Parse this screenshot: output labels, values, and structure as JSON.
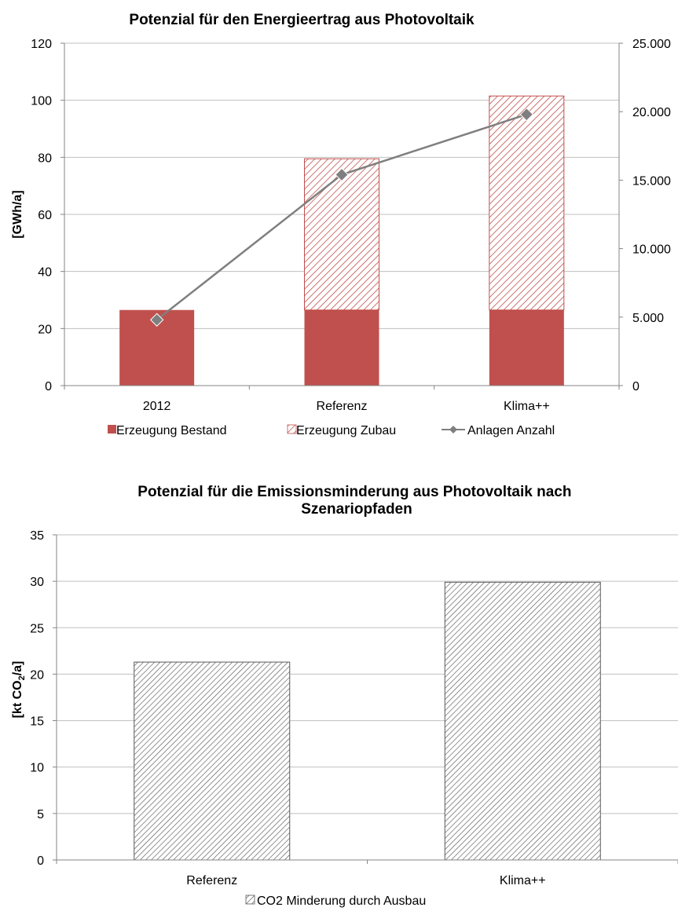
{
  "chart_data": [
    {
      "type": "bar",
      "stacked": true,
      "title": "Potenzial für den Energieertrag aus Photovoltaik",
      "ylabel": "[GWh/a]",
      "categories": [
        "2012",
        "Referenz",
        "Klima++"
      ],
      "ylim": [
        0,
        120
      ],
      "yticks": [
        "0",
        "20",
        "40",
        "60",
        "80",
        "100",
        "120"
      ],
      "y2lim": [
        0,
        25000
      ],
      "y2ticks": [
        "0",
        "5.000",
        "10.000",
        "15.000",
        "20.000",
        "25.000"
      ],
      "grid": true,
      "legend_position": "bottom",
      "series": [
        {
          "name": "Erzeugung Bestand",
          "type": "bar",
          "color": "#c0504d",
          "values": [
            26.5,
            26.5,
            26.5
          ]
        },
        {
          "name": "Erzeugung Zubau",
          "type": "bar",
          "pattern": "diagonal-hatch",
          "color": "#c0504d",
          "values": [
            0,
            53,
            75
          ]
        },
        {
          "name": "Anlagen Anzahl",
          "type": "line",
          "axis": "secondary",
          "color": "#7f7f7f",
          "marker": "diamond",
          "values": [
            4800,
            15400,
            19800
          ]
        }
      ]
    },
    {
      "type": "bar",
      "title": "Potenzial für die Emissionsminderung aus Photovoltaik nach Szenariopfaden",
      "ylabel": "[kt CO2/a]",
      "categories": [
        "Referenz",
        "Klima++"
      ],
      "ylim": [
        0,
        35
      ],
      "yticks": [
        "0",
        "5",
        "10",
        "15",
        "20",
        "25",
        "30",
        "35"
      ],
      "grid": true,
      "legend_position": "bottom",
      "series": [
        {
          "name": "CO2 Minderung durch Ausbau",
          "type": "bar",
          "pattern": "diagonal-hatch",
          "color": "#595959",
          "values": [
            21.3,
            29.9
          ]
        }
      ]
    }
  ]
}
